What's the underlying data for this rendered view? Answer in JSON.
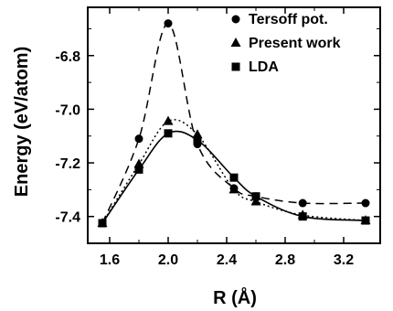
{
  "chart_data": {
    "type": "line",
    "title": "",
    "xlabel": "R (Å)",
    "ylabel": "Energy (eV/atom)",
    "xlim": [
      1.45,
      3.45
    ],
    "ylim": [
      -7.5,
      -6.62
    ],
    "xticks": [
      1.6,
      2.0,
      2.4,
      2.8,
      3.2
    ],
    "xtick_labels": [
      "1.6",
      "2.0",
      "2.4",
      "2.8",
      "3.2"
    ],
    "yticks": [
      -7.4,
      -7.2,
      -7.0,
      -6.8
    ],
    "ytick_labels": [
      "-7.4",
      "-7.2",
      "-7.0",
      "-6.8"
    ],
    "grid": false,
    "legend_position": "top-right",
    "series": [
      {
        "name": "Tersoff pot.",
        "marker": "circle",
        "line_style": "dashed",
        "x": [
          1.55,
          1.8,
          2.0,
          2.2,
          2.45,
          2.6,
          2.92,
          3.35
        ],
        "y": [
          -7.425,
          -7.11,
          -6.68,
          -7.13,
          -7.295,
          -7.325,
          -7.35,
          -7.35
        ]
      },
      {
        "name": "Present work",
        "marker": "triangle",
        "line_style": "dotted",
        "x": [
          1.55,
          1.8,
          2.0,
          2.2,
          2.45,
          2.6,
          2.92,
          3.35
        ],
        "y": [
          -7.425,
          -7.205,
          -7.045,
          -7.095,
          -7.3,
          -7.345,
          -7.395,
          -7.415
        ]
      },
      {
        "name": "LDA",
        "marker": "square",
        "line_style": "solid",
        "x": [
          1.55,
          1.8,
          2.0,
          2.2,
          2.45,
          2.6,
          2.92,
          3.35
        ],
        "y": [
          -7.425,
          -7.225,
          -7.09,
          -7.115,
          -7.255,
          -7.325,
          -7.4,
          -7.415
        ]
      }
    ]
  }
}
